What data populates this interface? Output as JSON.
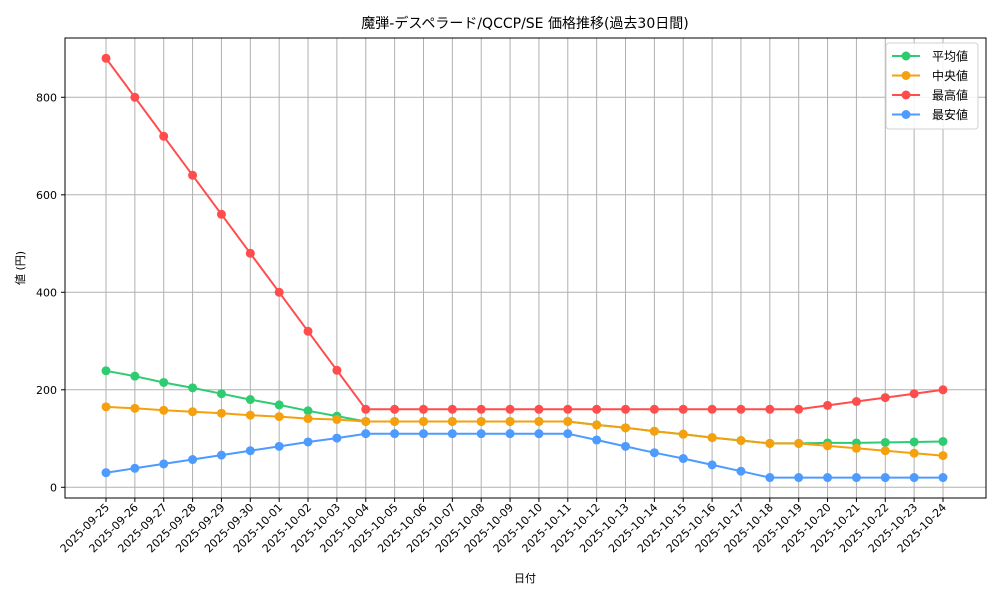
{
  "chart_data": {
    "type": "line",
    "title": "魔弾-デスペラード/QCCP/SE 価格推移(過去30日間)",
    "xlabel": "日付",
    "ylabel": "値 (円)",
    "ylim": [
      -25,
      925
    ],
    "yticks": [
      0,
      200,
      400,
      600,
      800
    ],
    "grid": true,
    "legend_position": "upper right",
    "x": [
      "2025-09-25",
      "2025-09-26",
      "2025-09-27",
      "2025-09-28",
      "2025-09-29",
      "2025-09-30",
      "2025-10-01",
      "2025-10-02",
      "2025-10-03",
      "2025-10-04",
      "2025-10-05",
      "2025-10-06",
      "2025-10-07",
      "2025-10-08",
      "2025-10-09",
      "2025-10-10",
      "2025-10-11",
      "2025-10-12",
      "2025-10-13",
      "2025-10-14",
      "2025-10-15",
      "2025-10-16",
      "2025-10-17",
      "2025-10-18",
      "2025-10-19",
      "2025-10-20",
      "2025-10-21",
      "2025-10-22",
      "2025-10-23",
      "2025-10-24"
    ],
    "series": [
      {
        "name": "平均値",
        "color": "#2ecc71",
        "values": [
          239,
          228,
          215,
          204,
          192,
          180,
          169,
          157,
          146,
          135,
          135,
          135,
          135,
          135,
          135,
          135,
          135,
          128,
          122,
          115,
          109,
          102,
          96,
          90,
          90,
          91,
          91,
          92,
          93,
          94
        ]
      },
      {
        "name": "中央値",
        "color": "#f5a00c",
        "values": [
          165,
          162,
          158,
          155,
          152,
          148,
          145,
          141,
          139,
          135,
          135,
          135,
          135,
          135,
          135,
          135,
          135,
          128,
          122,
          115,
          109,
          102,
          96,
          90,
          90,
          85,
          80,
          75,
          70,
          65
        ]
      },
      {
        "name": "最高値",
        "color": "#ff4d4d",
        "values": [
          880,
          800,
          720,
          640,
          560,
          480,
          400,
          320,
          240,
          160,
          160,
          160,
          160,
          160,
          160,
          160,
          160,
          160,
          160,
          160,
          160,
          160,
          160,
          160,
          160,
          168,
          176,
          184,
          192,
          200
        ]
      },
      {
        "name": "最安値",
        "color": "#4d9bff",
        "values": [
          30,
          39,
          48,
          57,
          66,
          75,
          84,
          93,
          101,
          110,
          110,
          110,
          110,
          110,
          110,
          110,
          110,
          97,
          84,
          71,
          59,
          46,
          33,
          20,
          20,
          20,
          20,
          20,
          20,
          20
        ]
      }
    ]
  }
}
